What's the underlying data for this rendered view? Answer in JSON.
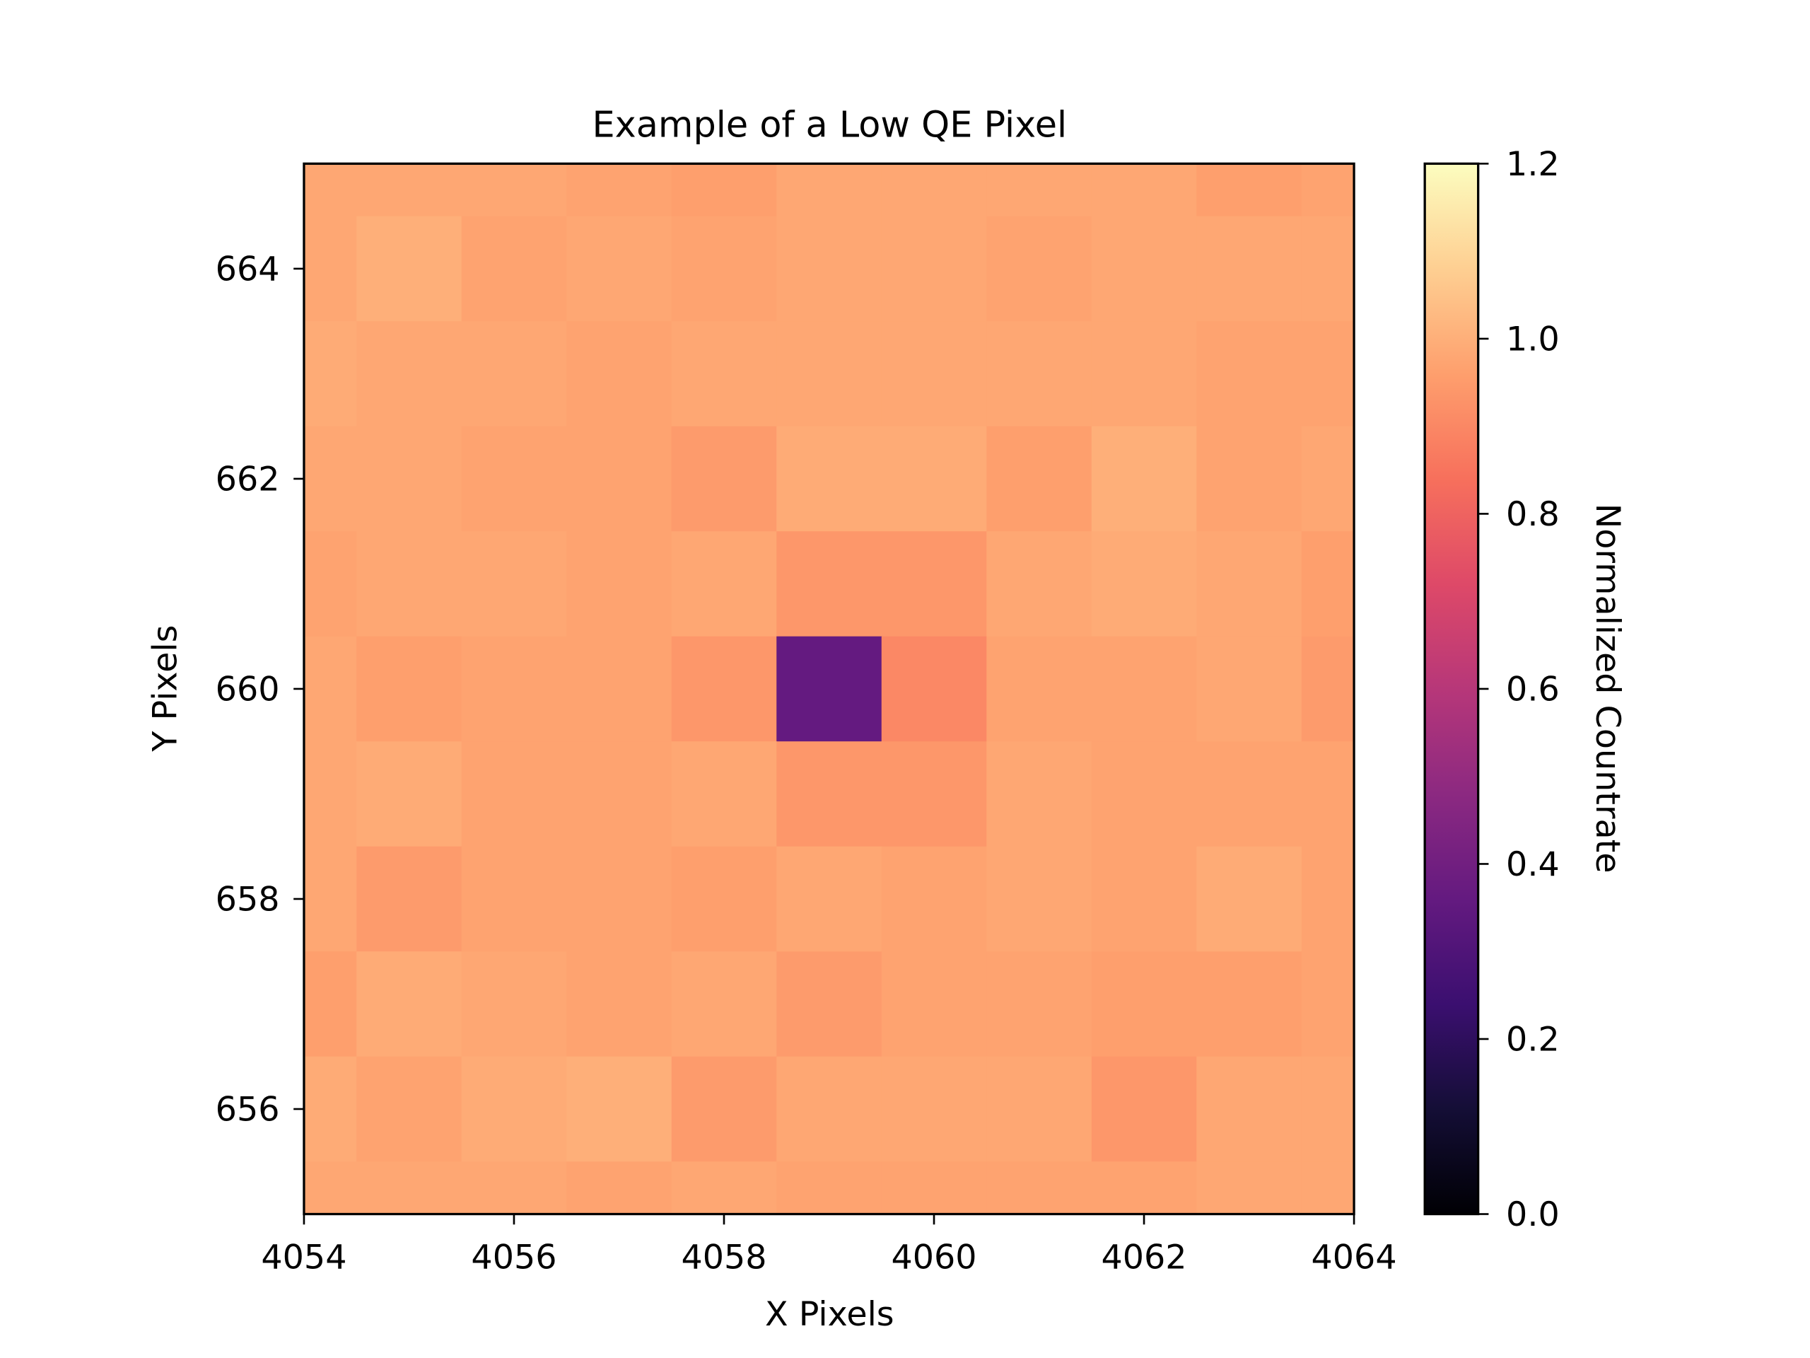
{
  "chart_data": {
    "type": "heatmap",
    "title": "Example of a Low QE Pixel",
    "xlabel": "X Pixels",
    "ylabel": "Y Pixels",
    "colorbar_label": "Normalized Countrate",
    "colormap": "magma",
    "vmin": 0.0,
    "vmax": 1.2,
    "xlim": [
      4054,
      4064
    ],
    "ylim": [
      655,
      665
    ],
    "x": [
      4054,
      4055,
      4056,
      4057,
      4058,
      4059,
      4060,
      4061,
      4062,
      4063,
      4064
    ],
    "y": [
      665,
      664,
      663,
      662,
      661,
      660,
      659,
      658,
      657,
      656,
      655
    ],
    "xticks": [
      "4054",
      "4056",
      "4058",
      "4060",
      "4062",
      "4064"
    ],
    "yticks": [
      "656",
      "658",
      "660",
      "662",
      "664"
    ],
    "colorbar_ticks": [
      "0.0",
      "0.2",
      "0.4",
      "0.6",
      "0.8",
      "1.0",
      "1.2"
    ],
    "values": [
      [
        0.98,
        0.98,
        0.98,
        0.97,
        0.96,
        0.98,
        0.98,
        0.98,
        0.98,
        0.96,
        0.97
      ],
      [
        0.98,
        1.0,
        0.97,
        0.98,
        0.97,
        0.98,
        0.98,
        0.97,
        0.98,
        0.98,
        0.98
      ],
      [
        0.99,
        0.98,
        0.98,
        0.97,
        0.98,
        0.98,
        0.98,
        0.98,
        0.98,
        0.97,
        0.97
      ],
      [
        0.98,
        0.98,
        0.97,
        0.97,
        0.95,
        0.99,
        0.99,
        0.96,
        1.0,
        0.97,
        0.98
      ],
      [
        0.97,
        0.98,
        0.98,
        0.97,
        0.98,
        0.94,
        0.94,
        0.98,
        0.99,
        0.98,
        0.96
      ],
      [
        0.98,
        0.96,
        0.97,
        0.97,
        0.94,
        0.36,
        0.9,
        0.97,
        0.97,
        0.98,
        0.95
      ],
      [
        0.98,
        0.99,
        0.97,
        0.97,
        0.98,
        0.94,
        0.94,
        0.98,
        0.97,
        0.97,
        0.97
      ],
      [
        0.98,
        0.95,
        0.97,
        0.97,
        0.96,
        0.98,
        0.97,
        0.98,
        0.97,
        0.99,
        0.97
      ],
      [
        0.96,
        0.99,
        0.98,
        0.97,
        0.98,
        0.95,
        0.97,
        0.97,
        0.96,
        0.96,
        0.97
      ],
      [
        0.99,
        0.97,
        0.99,
        1.0,
        0.95,
        0.98,
        0.98,
        0.98,
        0.94,
        0.98,
        0.98
      ],
      [
        0.98,
        0.98,
        0.98,
        0.97,
        0.98,
        0.97,
        0.97,
        0.97,
        0.97,
        0.98,
        0.98
      ]
    ]
  }
}
